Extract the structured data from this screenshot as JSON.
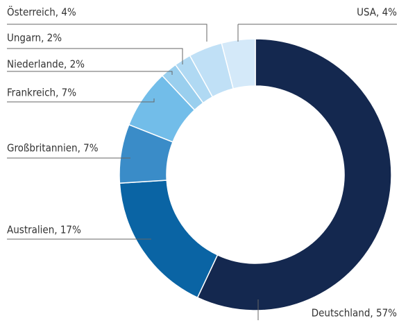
{
  "chart_data": {
    "type": "donut",
    "values": [
      57,
      17,
      7,
      7,
      2,
      2,
      4,
      4
    ],
    "value_labels": [
      "Deutschland, 57%",
      "Australien, 17%",
      "Großbritannien, 7%",
      "Frankreich, 7%",
      "Niederlande, 2%",
      "Ungarn, 2%",
      "Österreich, 4%",
      "USA, 4%"
    ],
    "colors": [
      "#14284f",
      "#0a64a4",
      "#3a8cc8",
      "#72bde9",
      "#9acfee",
      "#b0d9f3",
      "#c0e0f6",
      "#d4e9f9"
    ]
  }
}
